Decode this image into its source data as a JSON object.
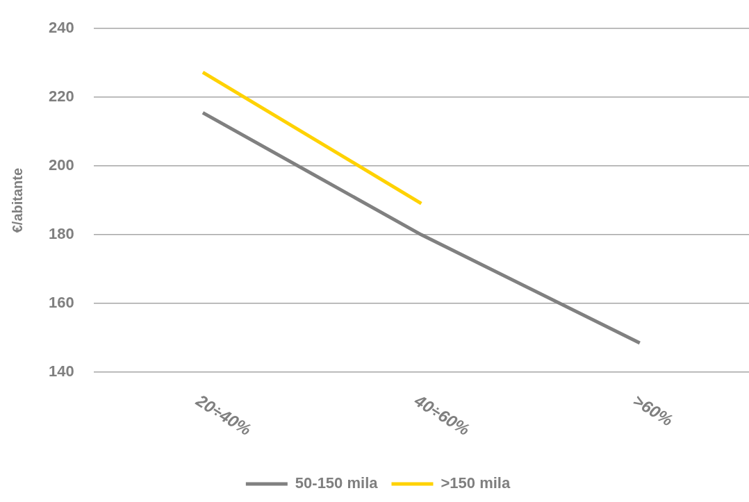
{
  "chart_data": {
    "type": "line",
    "ylabel": "€/abitante",
    "categories": [
      "20÷40%",
      "40÷60%",
      ">60%"
    ],
    "series": [
      {
        "name": "50-150 mila",
        "color": "#808080",
        "values": [
          215.5,
          180,
          148.5
        ]
      },
      {
        "name": ">150 mila",
        "color": "#ffd200",
        "values": [
          227.3,
          189.1,
          null
        ]
      }
    ],
    "ylim": [
      140,
      240
    ],
    "yticks": [
      140,
      160,
      180,
      200,
      220,
      240
    ],
    "grid": "y",
    "legend": "bottom",
    "marker": "none",
    "line_style": "solid"
  }
}
